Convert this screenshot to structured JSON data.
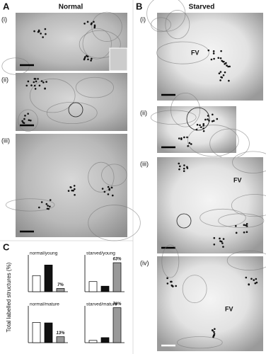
{
  "panels": {
    "A": {
      "letter": "A",
      "title": "Normal",
      "images": [
        {
          "label": "(i)"
        },
        {
          "label": "(ii)"
        },
        {
          "label": "(iii)"
        }
      ]
    },
    "B": {
      "letter": "B",
      "title": "Starved",
      "images": [
        {
          "label": "(i)",
          "annotation": "FV"
        },
        {
          "label": "(ii)"
        },
        {
          "label": "(iii)",
          "annotation": "FV"
        },
        {
          "label": "(iv)",
          "annotation": "FV"
        }
      ]
    },
    "C": {
      "letter": "C",
      "ylabel": "Total labelled structures (%)"
    }
  },
  "chart_data": [
    {
      "type": "bar",
      "title": "normal/young",
      "values": [
        35,
        58,
        7
      ],
      "value_labels": [
        null,
        null,
        "7%"
      ],
      "colors": [
        "#ffffff",
        "#111111",
        "#999999"
      ],
      "ylim": [
        0,
        80
      ]
    },
    {
      "type": "bar",
      "title": "starved/young",
      "values": [
        22,
        12,
        63
      ],
      "value_labels": [
        null,
        null,
        "63%"
      ],
      "colors": [
        "#ffffff",
        "#111111",
        "#999999"
      ],
      "ylim": [
        0,
        80
      ]
    },
    {
      "type": "bar",
      "title": "normal/mature",
      "values": [
        44,
        43,
        13
      ],
      "value_labels": [
        null,
        null,
        "13%"
      ],
      "colors": [
        "#ffffff",
        "#111111",
        "#999999"
      ],
      "ylim": [
        0,
        80
      ]
    },
    {
      "type": "bar",
      "title": "starved/mature",
      "values": [
        5,
        11,
        76
      ],
      "value_labels": [
        null,
        null,
        "76%"
      ],
      "colors": [
        "#ffffff",
        "#111111",
        "#999999"
      ],
      "ylim": [
        0,
        80
      ]
    }
  ]
}
